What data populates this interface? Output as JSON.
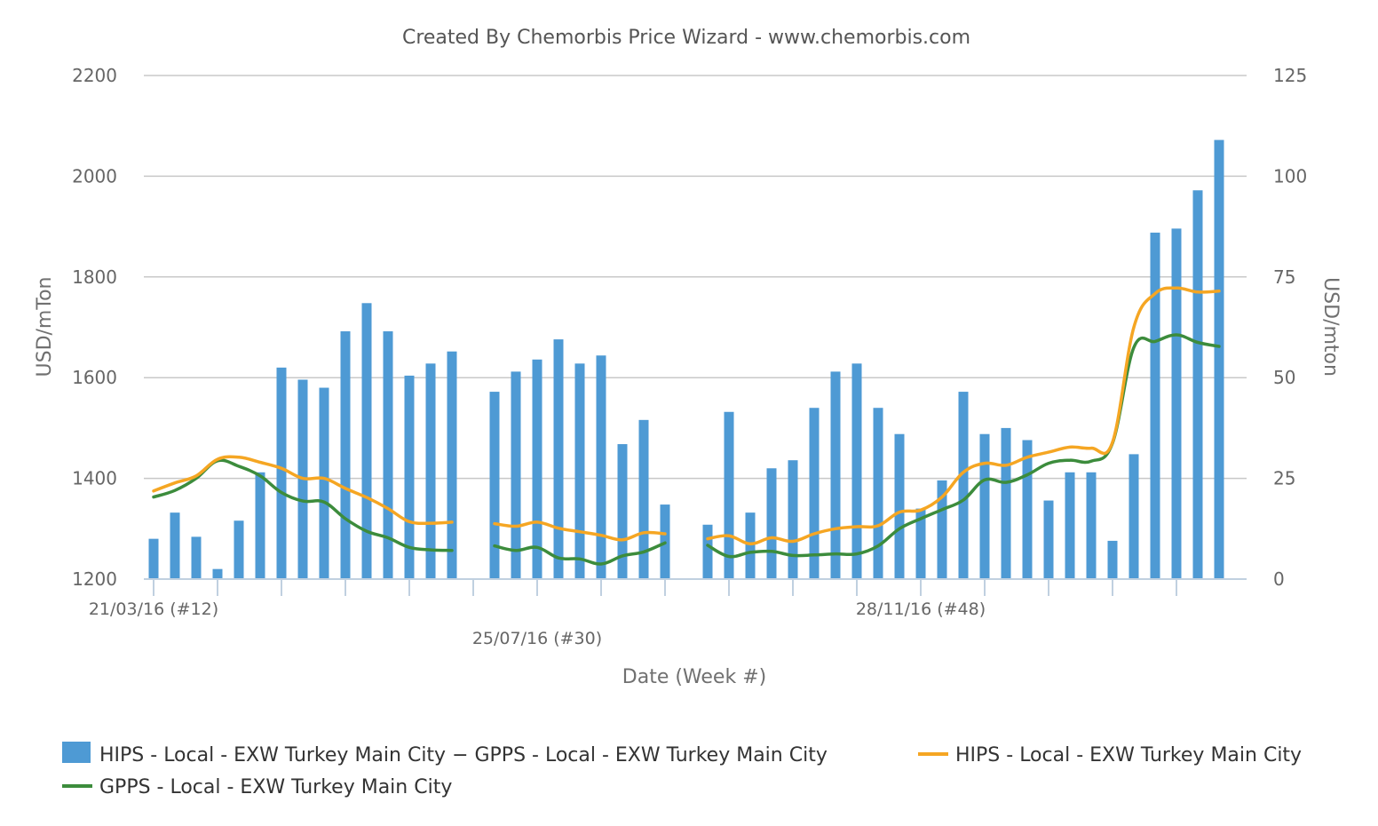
{
  "chart_data": {
    "type": "bar",
    "title": "Created By Chemorbis Price Wizard - www.chemorbis.com",
    "xlabel": "Date (Week #)",
    "ylabel_left": "USD/mTon",
    "ylabel_right": "USD/mton",
    "y_left_range": [
      1200,
      2200
    ],
    "y_left_ticks": [
      1200,
      1400,
      1600,
      1800,
      2000,
      2200
    ],
    "y_right_range": [
      0,
      125
    ],
    "y_right_ticks": [
      0,
      25,
      50,
      75,
      100,
      125
    ],
    "grid": true,
    "legend_position": "bottom",
    "x_tick_labels": [
      {
        "index": 0,
        "text": "21/03/16 (#12)",
        "row": 1
      },
      {
        "index": 18,
        "text": "25/07/16 (#30)",
        "row": 2
      },
      {
        "index": 36,
        "text": "28/11/16 (#48)",
        "row": 1
      }
    ],
    "n_weeks": 51,
    "series": [
      {
        "name": "HIPS - Local - EXW Turkey Main City − GPPS - Local - EXW Turkey Main City",
        "type": "bar",
        "axis": "right",
        "color": "#4e9ad4",
        "values": [
          10,
          16.5,
          10.5,
          2.5,
          14.5,
          26.5,
          52.5,
          49.5,
          47.5,
          61.5,
          68.5,
          61.5,
          50.5,
          53.5,
          56.5,
          null,
          46.5,
          51.5,
          54.5,
          59.5,
          53.5,
          55.5,
          33.5,
          39.5,
          18.5,
          null,
          13.5,
          41.5,
          16.5,
          27.5,
          29.5,
          42.5,
          51.5,
          53.5,
          42.5,
          36,
          17.5,
          24.5,
          46.5,
          36,
          37.5,
          34.5,
          19.5,
          26.5,
          26.5,
          9.5,
          31,
          86,
          87,
          96.5,
          109
        ]
      },
      {
        "name": "HIPS - Local - EXW Turkey Main City",
        "type": "line",
        "axis": "left",
        "color": "#f5a623",
        "values": [
          1375,
          1391,
          1405,
          1438,
          1442,
          1432,
          1420,
          1400,
          1400,
          1380,
          1362,
          1340,
          1314,
          1311,
          1313,
          null,
          1310,
          1305,
          1313,
          1301,
          1294,
          1287,
          1278,
          1292,
          1290,
          null,
          1280,
          1286,
          1270,
          1282,
          1275,
          1290,
          1300,
          1304,
          1306,
          1333,
          1337,
          1363,
          1412,
          1430,
          1426,
          1442,
          1452,
          1462,
          1460,
          1472,
          1700,
          1767,
          1778,
          1770,
          1772
        ]
      },
      {
        "name": "GPPS - Local - EXW Turkey Main City",
        "type": "line",
        "axis": "left",
        "color": "#3c8c3c",
        "values": [
          1363,
          1376,
          1400,
          1435,
          1424,
          1405,
          1372,
          1355,
          1353,
          1320,
          1295,
          1282,
          1263,
          1258,
          1257,
          null,
          1266,
          1257,
          1263,
          1242,
          1240,
          1230,
          1246,
          1254,
          1272,
          null,
          1267,
          1245,
          1253,
          1255,
          1247,
          1248,
          1250,
          1250,
          1266,
          1300,
          1320,
          1338,
          1357,
          1397,
          1392,
          1407,
          1430,
          1436,
          1434,
          1470,
          1660,
          1672,
          1685,
          1670,
          1662
        ]
      }
    ]
  }
}
